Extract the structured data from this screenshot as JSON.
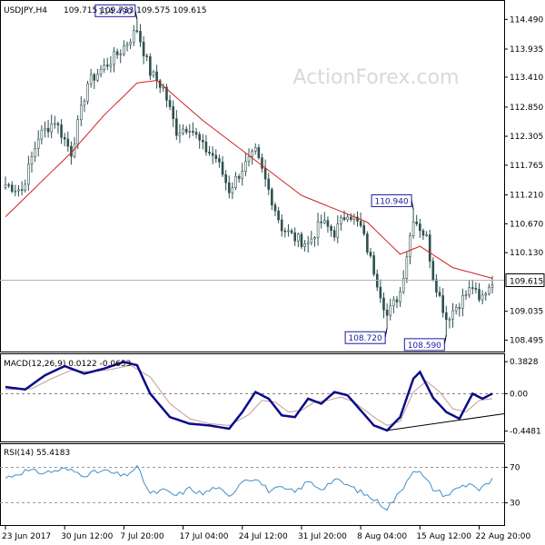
{
  "header": {
    "symbol": "USDJPY,H4",
    "ohlc": "109.715 109.733 109.575 109.615"
  },
  "watermark": "ActionForex.com",
  "colors": {
    "candle": "#2f4f4f",
    "ma": "#d21f1f",
    "macd": "#0b0b8a",
    "signal": "#c49a9a",
    "rsi": "#3f8fc9",
    "label_border": "#1a1aa0",
    "price_tag_bg": "#ffffff"
  },
  "chart_data": [
    {
      "type": "candlestick",
      "title": "USDJPY,H4",
      "ylim": [
        108.35,
        114.75
      ],
      "y_ticks": [
        "114.490",
        "113.935",
        "113.410",
        "112.850",
        "112.305",
        "111.765",
        "111.210",
        "110.670",
        "110.130",
        "109.035",
        "108.495"
      ],
      "y_tick_values": [
        114.49,
        113.935,
        113.41,
        112.85,
        112.305,
        111.765,
        111.21,
        110.67,
        110.13,
        109.035,
        108.495
      ],
      "current_price": "109.615",
      "current_price_value": 109.615,
      "annotations": [
        {
          "text": "114.490",
          "value": 114.49,
          "index": 40
        },
        {
          "text": "110.940",
          "value": 110.94,
          "index": 124
        },
        {
          "text": "108.720",
          "value": 108.72,
          "index": 116
        },
        {
          "text": "108.590",
          "value": 108.59,
          "index": 134
        }
      ],
      "anchors": [
        [
          0,
          111.4
        ],
        [
          5,
          111.3
        ],
        [
          10,
          112.3
        ],
        [
          15,
          112.6
        ],
        [
          20,
          112.0
        ],
        [
          25,
          113.3
        ],
        [
          30,
          113.6
        ],
        [
          35,
          113.9
        ],
        [
          40,
          114.3
        ],
        [
          44,
          113.5
        ],
        [
          48,
          113.2
        ],
        [
          52,
          112.4
        ],
        [
          56,
          112.5
        ],
        [
          60,
          112.1
        ],
        [
          64,
          111.9
        ],
        [
          68,
          111.3
        ],
        [
          72,
          111.7
        ],
        [
          76,
          112.0
        ],
        [
          80,
          111.3
        ],
        [
          84,
          110.6
        ],
        [
          88,
          110.4
        ],
        [
          92,
          110.3
        ],
        [
          96,
          110.7
        ],
        [
          100,
          110.5
        ],
        [
          104,
          110.9
        ],
        [
          108,
          110.6
        ],
        [
          112,
          109.8
        ],
        [
          116,
          108.95
        ],
        [
          120,
          109.4
        ],
        [
          124,
          110.8
        ],
        [
          128,
          110.4
        ],
        [
          130,
          109.7
        ],
        [
          134,
          108.9
        ],
        [
          138,
          109.2
        ],
        [
          142,
          109.5
        ],
        [
          144,
          109.2
        ],
        [
          148,
          109.62
        ]
      ],
      "ma_anchors": [
        [
          0,
          110.8
        ],
        [
          10,
          111.4
        ],
        [
          20,
          112.0
        ],
        [
          30,
          112.7
        ],
        [
          40,
          113.3
        ],
        [
          46,
          113.35
        ],
        [
          60,
          112.6
        ],
        [
          75,
          111.9
        ],
        [
          90,
          111.2
        ],
        [
          100,
          110.95
        ],
        [
          110,
          110.7
        ],
        [
          120,
          110.1
        ],
        [
          126,
          110.25
        ],
        [
          136,
          109.85
        ],
        [
          148,
          109.65
        ]
      ]
    },
    {
      "type": "line",
      "title": "MACD(12,26,9) 0.0122 -0.0653",
      "ylim": [
        -0.55,
        0.45
      ],
      "y_ticks": [
        "0.3828",
        "0.00",
        "-0.4481"
      ],
      "y_tick_values": [
        0.3828,
        0.0,
        -0.4481
      ],
      "series": [
        {
          "anchors": [
            [
              0,
              0.08
            ],
            [
              6,
              0.05
            ],
            [
              12,
              0.22
            ],
            [
              18,
              0.33
            ],
            [
              24,
              0.24
            ],
            [
              30,
              0.3
            ],
            [
              36,
              0.38
            ],
            [
              40,
              0.34
            ],
            [
              44,
              0.0
            ],
            [
              50,
              -0.28
            ],
            [
              56,
              -0.36
            ],
            [
              62,
              -0.38
            ],
            [
              68,
              -0.42
            ],
            [
              72,
              -0.22
            ],
            [
              76,
              0.02
            ],
            [
              80,
              -0.06
            ],
            [
              84,
              -0.26
            ],
            [
              88,
              -0.28
            ],
            [
              92,
              -0.06
            ],
            [
              96,
              -0.12
            ],
            [
              100,
              0.02
            ],
            [
              104,
              -0.02
            ],
            [
              108,
              -0.2
            ],
            [
              112,
              -0.38
            ],
            [
              116,
              -0.44
            ],
            [
              120,
              -0.28
            ],
            [
              124,
              0.18
            ],
            [
              126,
              0.26
            ],
            [
              130,
              -0.05
            ],
            [
              134,
              -0.22
            ],
            [
              138,
              -0.3
            ],
            [
              142,
              0.0
            ],
            [
              145,
              -0.06
            ],
            [
              148,
              0.0
            ]
          ]
        },
        {
          "anchors": [
            [
              0,
              0.05
            ],
            [
              8,
              0.06
            ],
            [
              14,
              0.18
            ],
            [
              20,
              0.28
            ],
            [
              26,
              0.26
            ],
            [
              32,
              0.29
            ],
            [
              38,
              0.34
            ],
            [
              44,
              0.2
            ],
            [
              50,
              -0.12
            ],
            [
              56,
              -0.3
            ],
            [
              62,
              -0.36
            ],
            [
              68,
              -0.38
            ],
            [
              74,
              -0.25
            ],
            [
              78,
              -0.08
            ],
            [
              82,
              -0.1
            ],
            [
              86,
              -0.22
            ],
            [
              90,
              -0.2
            ],
            [
              94,
              -0.1
            ],
            [
              98,
              -0.08
            ],
            [
              102,
              -0.04
            ],
            [
              106,
              -0.1
            ],
            [
              112,
              -0.28
            ],
            [
              116,
              -0.38
            ],
            [
              120,
              -0.33
            ],
            [
              124,
              0.02
            ],
            [
              128,
              0.15
            ],
            [
              132,
              0.02
            ],
            [
              136,
              -0.18
            ],
            [
              140,
              -0.22
            ],
            [
              144,
              -0.08
            ],
            [
              148,
              -0.06
            ]
          ]
        }
      ],
      "trendline": [
        [
          116,
          -0.44
        ],
        [
          148,
          -0.24
        ]
      ]
    },
    {
      "type": "line",
      "title": "RSI(14) 55.4183",
      "ylim": [
        5,
        95
      ],
      "y_ticks": [
        "70",
        "30"
      ],
      "y_tick_values": [
        70,
        30
      ],
      "anchors": [
        [
          0,
          58
        ],
        [
          6,
          66
        ],
        [
          12,
          64
        ],
        [
          18,
          68
        ],
        [
          24,
          62
        ],
        [
          30,
          66
        ],
        [
          36,
          60
        ],
        [
          40,
          70
        ],
        [
          44,
          40
        ],
        [
          48,
          44
        ],
        [
          52,
          38
        ],
        [
          56,
          46
        ],
        [
          60,
          40
        ],
        [
          64,
          48
        ],
        [
          68,
          36
        ],
        [
          72,
          56
        ],
        [
          76,
          58
        ],
        [
          80,
          44
        ],
        [
          84,
          46
        ],
        [
          88,
          42
        ],
        [
          92,
          54
        ],
        [
          96,
          46
        ],
        [
          100,
          56
        ],
        [
          104,
          50
        ],
        [
          108,
          42
        ],
        [
          112,
          34
        ],
        [
          116,
          24
        ],
        [
          120,
          42
        ],
        [
          124,
          68
        ],
        [
          126,
          64
        ],
        [
          130,
          46
        ],
        [
          134,
          38
        ],
        [
          138,
          48
        ],
        [
          142,
          52
        ],
        [
          144,
          44
        ],
        [
          148,
          55.4
        ]
      ]
    }
  ],
  "x_axis": {
    "labels": [
      "23 Jun 2017",
      "30 Jun 12:00",
      "7 Jul 20:00",
      "17 Jul 04:00",
      "24 Jul 12:00",
      "31 Jul 20:00",
      "8 Aug 04:00",
      "15 Aug 12:00",
      "22 Aug 20:00"
    ],
    "indices": [
      0,
      18,
      36,
      54,
      72,
      90,
      108,
      126,
      144
    ],
    "count": 149
  }
}
